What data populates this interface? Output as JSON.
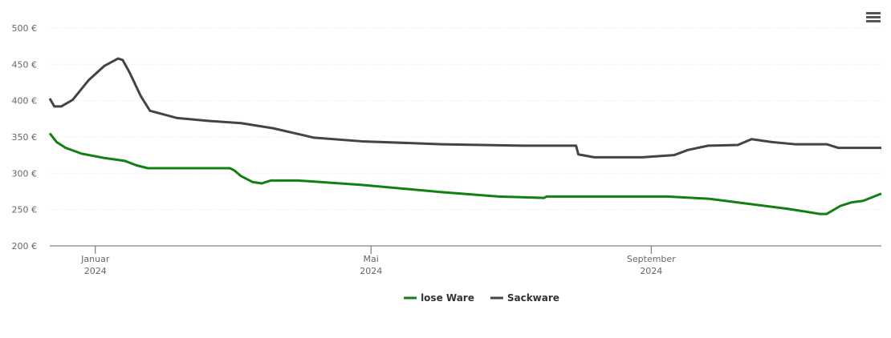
{
  "chart_data": {
    "type": "line",
    "series": [
      {
        "name": "lose Ware",
        "color": "#118011",
        "x": [
          -20,
          -17,
          -13,
          -6,
          4,
          13,
          18,
          23,
          59,
          61,
          64,
          69,
          73,
          75,
          77,
          89,
          117,
          152,
          177,
          197,
          198,
          251,
          269,
          304,
          318,
          321,
          327,
          332,
          337,
          345
        ],
        "values": [
          355,
          343,
          335,
          327,
          321,
          317,
          311,
          307,
          307,
          304,
          296,
          288,
          286,
          288,
          290,
          290,
          284,
          274,
          268,
          266,
          268,
          268,
          265,
          251,
          244,
          244,
          255,
          260,
          262,
          272
        ]
      },
      {
        "name": "Sackware",
        "color": "#434348",
        "x": [
          -20,
          -18,
          -15,
          -10,
          -3,
          4,
          10,
          12,
          15,
          20,
          24,
          36,
          50,
          64,
          78,
          96,
          117,
          152,
          188,
          211,
          212,
          219,
          240,
          254,
          260,
          269,
          282,
          288,
          297,
          307,
          321,
          326,
          345
        ],
        "values": [
          403,
          392,
          392,
          401,
          428,
          448,
          458,
          456,
          439,
          406,
          386,
          376,
          372,
          369,
          362,
          349,
          344,
          340,
          338,
          338,
          326,
          322,
          322,
          325,
          332,
          338,
          339,
          347,
          343,
          340,
          340,
          335,
          335
        ]
      }
    ],
    "xlim": [
      -20,
      345
    ],
    "xticks": [
      {
        "value": 0,
        "label": "Januar 2024"
      },
      {
        "value": 121,
        "label": "Mai 2024"
      },
      {
        "value": 244,
        "label": "September 2024"
      }
    ],
    "ylim": [
      200,
      500
    ],
    "yticks": [
      {
        "value": 200,
        "label": "200 €"
      },
      {
        "value": 250,
        "label": "250 €"
      },
      {
        "value": 300,
        "label": "300 €"
      },
      {
        "value": 350,
        "label": "350 €"
      },
      {
        "value": 400,
        "label": "400 €"
      },
      {
        "value": 450,
        "label": "450 €"
      },
      {
        "value": 500,
        "label": "500 €"
      }
    ],
    "grid": true,
    "legend": "bottom"
  }
}
